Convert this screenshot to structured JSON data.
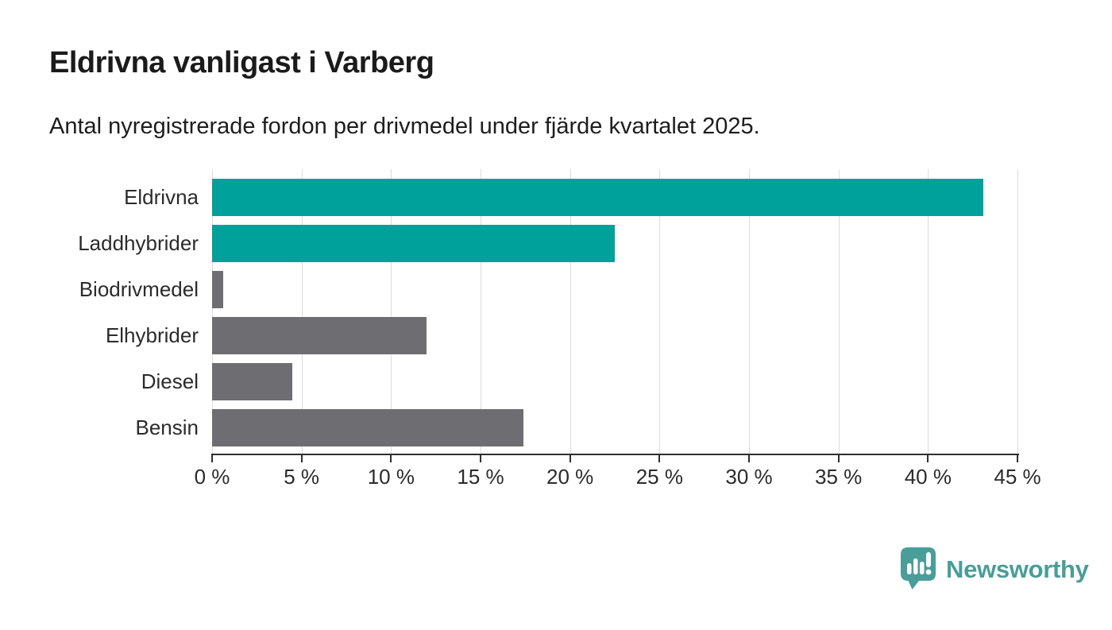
{
  "chart_data": {
    "type": "bar",
    "orientation": "horizontal",
    "title": "Eldrivna vanligast i Varberg",
    "subtitle": "Antal nyregistrerade fordon per drivmedel under fjärde kvartalet 2025.",
    "categories": [
      "Eldrivna",
      "Laddhybrider",
      "Biodrivmedel",
      "Elhybrider",
      "Diesel",
      "Bensin"
    ],
    "values": [
      43.1,
      22.5,
      0.6,
      12,
      4.5,
      17.4
    ],
    "unit": "%",
    "bar_colors": [
      "#00a19a",
      "#00a19a",
      "#6d6d72",
      "#6d6d72",
      "#6d6d72",
      "#6d6d72"
    ],
    "highlight_color": "#00a19a",
    "base_color": "#6d6d72",
    "xlim": [
      0,
      45
    ],
    "xtick_values": [
      0,
      5,
      10,
      15,
      20,
      25,
      30,
      35,
      40,
      45
    ],
    "xtick_labels": [
      "0 %",
      "5 %",
      "10 %",
      "15 %",
      "20 %",
      "25 %",
      "30 %",
      "35 %",
      "40 %",
      "45 %"
    ],
    "grid": true,
    "gridline_color": "#dcdcdc",
    "axis_color": "#2f2f2f",
    "legend": "none"
  },
  "footer": {
    "brand": "Newsworthy",
    "brand_color": "#4a9d99",
    "logo_icon": "speech-bubble-bar-chart-icon"
  }
}
